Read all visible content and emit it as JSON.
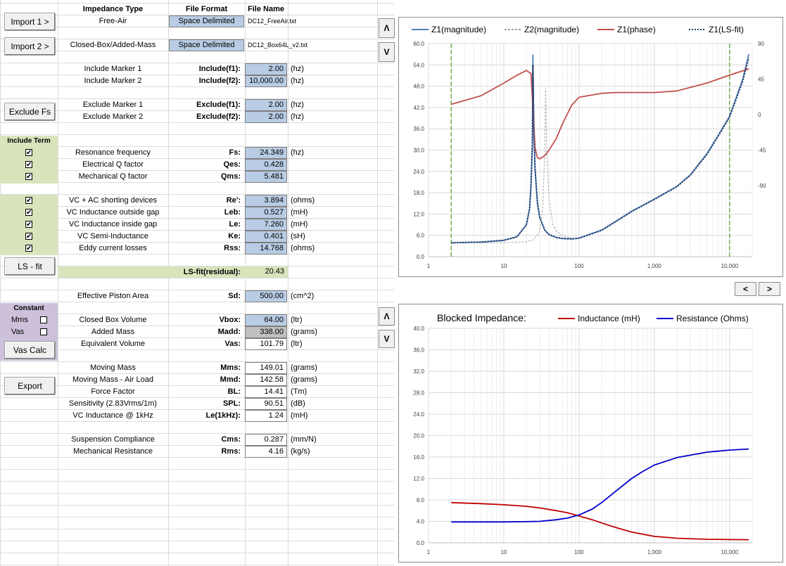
{
  "headers": {
    "impedance_type": "Impedance Type",
    "file_format": "File Format",
    "file_name": "File Name"
  },
  "imports": [
    {
      "button": "Import 1 >",
      "type": "Free-Air",
      "format": "Space Delimited",
      "file": "DC12_FreeAir.txt"
    },
    {
      "button": "Import 2 >",
      "type": "Closed-Box/Added-Mass",
      "format": "Space Delimited",
      "file": "DC12_Box64L_v2.txt"
    }
  ],
  "markers": [
    {
      "label": "Include Marker 1",
      "key": "Include(f1):",
      "value": "2.00",
      "unit": "(hz)"
    },
    {
      "label": "Include Marker 2",
      "key": "Include(f2):",
      "value": "10,000.00",
      "unit": "(hz)"
    },
    {
      "label": "Exclude Marker 1",
      "key": "Exclude(f1):",
      "value": "2.00",
      "unit": "(hz)"
    },
    {
      "label": "Exclude Marker 2",
      "key": "Exclude(f2):",
      "value": "2.00",
      "unit": "(hz)"
    }
  ],
  "buttons": {
    "exclude_fs": "Exclude Fs",
    "ls_fit": "LS - fit",
    "vas_calc": "Vas Calc",
    "export": "Export"
  },
  "include_term": {
    "title": "Include Term",
    "check": "✔"
  },
  "params_a": [
    {
      "label": "Resonance frequency",
      "key": "Fs:",
      "value": "24.349",
      "unit": "(hz)",
      "style": "blue"
    },
    {
      "label": "Electrical Q factor",
      "key": "Qes:",
      "value": "0.428",
      "unit": "",
      "style": "blue"
    },
    {
      "label": "Mechanical Q factor",
      "key": "Qms:",
      "value": "5.481",
      "unit": "",
      "style": "blue"
    }
  ],
  "params_b": [
    {
      "label": "VC + AC shorting devices",
      "key": "Re':",
      "value": "3.894",
      "unit": "(ohms)",
      "style": "blue"
    },
    {
      "label": "VC Inductance outside gap",
      "key": "Leb:",
      "value": "0.527",
      "unit": "(mH)",
      "style": "blue"
    },
    {
      "label": "VC Inductance inside gap",
      "key": "Le:",
      "value": "7.260",
      "unit": "(mH)",
      "style": "blue"
    },
    {
      "label": "VC Semi-Inductance",
      "key": "Ke:",
      "value": "0.401",
      "unit": "(sH)",
      "style": "blue"
    },
    {
      "label": "Eddy current losses",
      "key": "Rss:",
      "value": "14.768",
      "unit": "(ohms)",
      "style": "blue"
    }
  ],
  "residual": {
    "key": "LS-fit(residual):",
    "value": "20.43"
  },
  "piston": {
    "label": "Effective Piston Area",
    "key": "Sd:",
    "value": "500.00",
    "unit": "(cm^2)"
  },
  "constant": {
    "title": "Constant",
    "mms": "Mms",
    "vas": "Vas"
  },
  "params_c": [
    {
      "label": "Closed Box Volume",
      "key": "Vbox:",
      "value": "64.00",
      "unit": "(ltr)",
      "style": "blue"
    },
    {
      "label": "Added Mass",
      "key": "Madd:",
      "value": "338.00",
      "unit": "(grams)",
      "style": "grey"
    },
    {
      "label": "Equivalent Volume",
      "key": "Vas:",
      "value": "101.79",
      "unit": "(ltr)",
      "style": "white"
    }
  ],
  "params_d": [
    {
      "label": "Moving Mass",
      "key": "Mms:",
      "value": "149.01",
      "unit": "(grams)"
    },
    {
      "label": "Moving Mass - Air Load",
      "key": "Mmd:",
      "value": "142.58",
      "unit": "(grams)"
    },
    {
      "label": "Force Factor",
      "key": "BL:",
      "value": "14.41",
      "unit": "(Tm)"
    },
    {
      "label": "Sensitivity (2.83Vrms/1m)",
      "key": "SPL:",
      "value": "90.51",
      "unit": "(dB)"
    },
    {
      "label": "VC Inductance @ 1kHz",
      "key": "Le(1kHz):",
      "value": "1.24",
      "unit": "(mH)"
    }
  ],
  "params_e": [
    {
      "label": "Suspension Compliance",
      "key": "Cms:",
      "value": "0.287",
      "unit": "(mm/N)"
    },
    {
      "label": "Mechanical Resistance",
      "key": "Rms:",
      "value": "4.16",
      "unit": "(kg/s)"
    }
  ],
  "scroll": {
    "up": "Λ",
    "down": "V",
    "prev": "<",
    "next": ">"
  },
  "chart_data": [
    {
      "type": "line",
      "title": "",
      "x_scale": "log",
      "xlim": [
        1,
        20000
      ],
      "x_ticks": [
        "1",
        "10",
        "100",
        "1,000",
        "10,000"
      ],
      "y_ticks": [
        "0.0",
        "6.0",
        "12.0",
        "18.0",
        "24.0",
        "30.0",
        "36.0",
        "42.0",
        "48.0",
        "54.0",
        "60.0"
      ],
      "ylim": [
        0,
        60
      ],
      "y2_ticks": [
        "90",
        "45",
        "0",
        "-45",
        "-90"
      ],
      "y2lim": [
        -180,
        90
      ],
      "markers_x": [
        2,
        10000
      ],
      "series": [
        {
          "name": "Z1(magnitude)",
          "color": "#4f81bd",
          "style": "solid",
          "axis": "left",
          "x": [
            2,
            5,
            10,
            15,
            20,
            22,
            23,
            24,
            24.35,
            25,
            26,
            28,
            30,
            35,
            40,
            50,
            60,
            80,
            100,
            200,
            300,
            500,
            1000,
            2000,
            3000,
            5000,
            7000,
            10000,
            15000,
            18000
          ],
          "y": [
            3.9,
            4.1,
            4.6,
            5.6,
            9.0,
            13.5,
            20.0,
            32.0,
            56.8,
            38.0,
            25.0,
            15.0,
            11.0,
            7.5,
            6.2,
            5.4,
            5.1,
            5.0,
            5.2,
            7.5,
            9.8,
            12.8,
            16.2,
            19.8,
            23.0,
            29.0,
            34.0,
            39.5,
            50.0,
            57.0
          ]
        },
        {
          "name": "Z2(magnitude)",
          "color": "#a6a6a6",
          "style": "dashed",
          "axis": "left",
          "x": [
            2,
            5,
            10,
            20,
            25,
            30,
            33,
            35,
            36,
            37,
            40,
            45,
            50,
            60,
            80,
            100
          ],
          "y": [
            3.9,
            3.9,
            3.95,
            4.2,
            4.8,
            7.0,
            14.0,
            30.0,
            47.5,
            32.0,
            16.0,
            9.0,
            7.2,
            5.9,
            5.2,
            5.1
          ]
        },
        {
          "name": "Z1(phase)",
          "color": "#c0504d",
          "style": "solid",
          "axis": "right",
          "x": [
            2,
            5,
            10,
            15,
            20,
            23,
            24.35,
            26,
            28,
            30,
            35,
            40,
            50,
            60,
            80,
            100,
            200,
            300,
            500,
            1000,
            2000,
            5000,
            10000,
            18000
          ],
          "y": [
            13,
            24,
            40,
            50,
            56,
            52,
            10,
            -42,
            -55,
            -56,
            -52,
            -45,
            -30,
            -12,
            12,
            22,
            27,
            28,
            28,
            28,
            30,
            40,
            50,
            58
          ]
        },
        {
          "name": "Z1(LS-fit)",
          "color": "#1f3864",
          "style": "dotted",
          "axis": "left",
          "x": [
            2,
            5,
            10,
            15,
            20,
            22,
            23,
            24,
            24.35,
            25,
            26,
            28,
            30,
            35,
            40,
            50,
            60,
            80,
            100,
            200,
            300,
            500,
            1000,
            2000,
            3000,
            5000,
            7000,
            10000,
            15000,
            18000
          ],
          "y": [
            3.9,
            4.1,
            4.6,
            5.6,
            9.0,
            13.5,
            20.0,
            32.0,
            54.0,
            37.5,
            24.8,
            15.0,
            11.0,
            7.5,
            6.2,
            5.4,
            5.1,
            5.0,
            5.2,
            7.4,
            9.7,
            12.7,
            16.1,
            19.7,
            22.9,
            28.8,
            33.8,
            39.3,
            49.5,
            56.0
          ]
        }
      ]
    },
    {
      "type": "line",
      "title": "Blocked Impedance:",
      "x_scale": "log",
      "xlim": [
        1,
        20000
      ],
      "x_ticks": [
        "1",
        "10",
        "100",
        "1,000",
        "10,000"
      ],
      "y_ticks": [
        "0.0",
        "4.0",
        "8.0",
        "12.0",
        "16.0",
        "20.0",
        "24.0",
        "28.0",
        "32.0",
        "36.0",
        "40.0"
      ],
      "ylim": [
        0,
        40
      ],
      "series": [
        {
          "name": "Inductance (mH)",
          "color": "#c00000",
          "style": "solid",
          "x": [
            2,
            5,
            10,
            20,
            30,
            50,
            70,
            100,
            150,
            200,
            300,
            500,
            700,
            1000,
            2000,
            5000,
            10000,
            18000
          ],
          "y": [
            7.5,
            7.3,
            7.1,
            6.8,
            6.5,
            6.0,
            5.6,
            5.0,
            4.3,
            3.7,
            2.9,
            2.0,
            1.6,
            1.2,
            0.85,
            0.65,
            0.6,
            0.58
          ]
        },
        {
          "name": "Resistance (Ohms)",
          "color": "#0000cc",
          "style": "solid",
          "x": [
            2,
            5,
            10,
            20,
            30,
            50,
            70,
            100,
            150,
            200,
            300,
            500,
            700,
            1000,
            2000,
            5000,
            10000,
            18000
          ],
          "y": [
            3.9,
            3.9,
            3.9,
            3.95,
            4.0,
            4.3,
            4.6,
            5.2,
            6.3,
            7.5,
            9.5,
            12.0,
            13.3,
            14.5,
            15.9,
            16.9,
            17.3,
            17.5
          ]
        }
      ]
    }
  ]
}
